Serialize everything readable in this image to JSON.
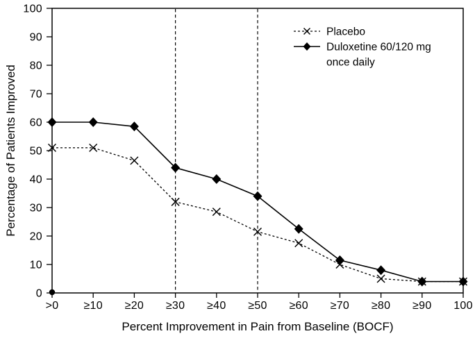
{
  "chart_data": {
    "type": "line",
    "title": "",
    "xlabel": "Percent Improvement in Pain from Baseline (BOCF)",
    "ylabel": "Percentage of Patients Improved",
    "categories": [
      ">0",
      "≥10",
      "≥20",
      "≥30",
      "≥40",
      "≥50",
      "≥60",
      "≥70",
      "≥80",
      "≥90",
      "100"
    ],
    "series": [
      {
        "name": "Placebo",
        "legend_lines": [
          "Placebo"
        ],
        "marker": "x",
        "line_style": "dashed",
        "color": "#000000",
        "values": [
          51,
          51,
          46.5,
          32,
          28.5,
          21.5,
          17.5,
          10,
          5,
          4,
          4
        ]
      },
      {
        "name": "Duloxetine 60/120 mg once daily",
        "legend_lines": [
          "Duloxetine 60/120 mg",
          "once daily"
        ],
        "marker": "diamond",
        "line_style": "solid",
        "color": "#000000",
        "values": [
          60,
          60,
          58.5,
          44,
          40,
          34,
          22.5,
          11.5,
          8,
          4,
          4
        ]
      }
    ],
    "y_ticks": [
      0,
      10,
      20,
      30,
      40,
      50,
      60,
      70,
      80,
      90,
      100
    ],
    "ylim": [
      0,
      100
    ],
    "grid": false,
    "legend_position": "top-right-inside",
    "reference_lines": [
      {
        "category": "≥30",
        "style": "dashed"
      },
      {
        "category": "≥50",
        "style": "dashed"
      }
    ],
    "origin_marker": {
      "category": ">0",
      "value": 0
    },
    "colors": {
      "foreground": "#000000",
      "background": "#ffffff"
    }
  }
}
